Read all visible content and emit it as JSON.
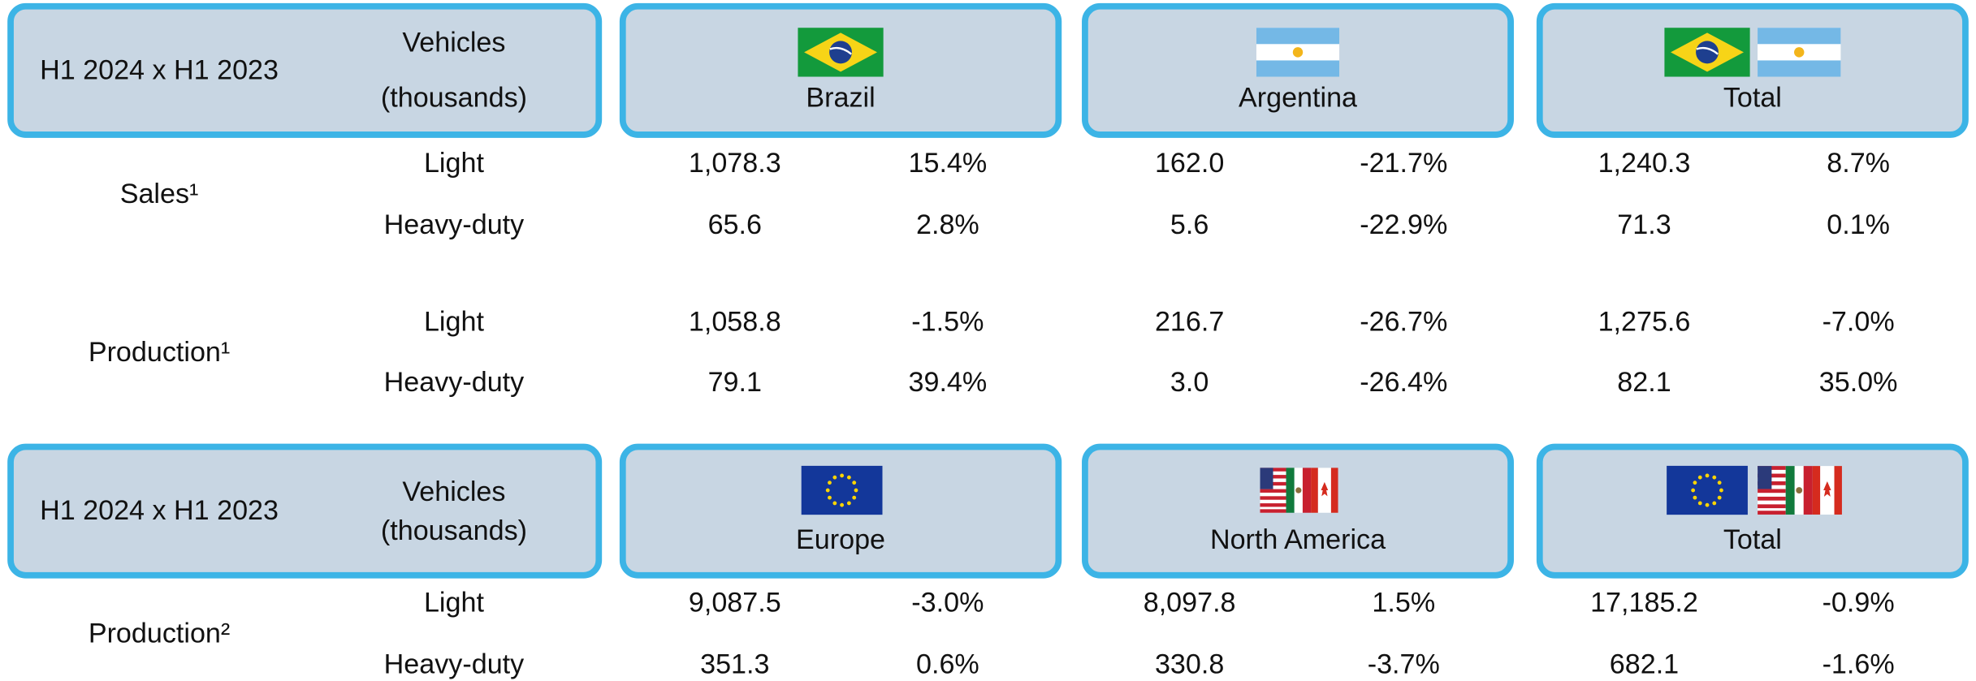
{
  "tables": [
    {
      "header": {
        "period": "H1 2024 x H1 2023",
        "unit": [
          "Vehicles",
          "(thousands)"
        ],
        "regions": [
          "Brazil",
          "Argentina",
          "Total"
        ]
      },
      "groups": [
        {
          "label": "Sales¹",
          "rows": [
            {
              "type": "Light",
              "values": [
                "1,078.3",
                "15.4%",
                "162.0",
                "-21.7%",
                "1,240.3",
                "8.7%"
              ]
            },
            {
              "type": "Heavy-duty",
              "values": [
                "65.6",
                "2.8%",
                "5.6",
                "-22.9%",
                "71.3",
                "0.1%"
              ]
            }
          ]
        },
        {
          "label": "Production¹",
          "rows": [
            {
              "type": "Light",
              "values": [
                "1,058.8",
                "-1.5%",
                "216.7",
                "-26.7%",
                "1,275.6",
                "-7.0%"
              ]
            },
            {
              "type": "Heavy-duty",
              "values": [
                "79.1",
                "39.4%",
                "3.0",
                "-26.4%",
                "82.1",
                "35.0%"
              ]
            }
          ]
        }
      ]
    },
    {
      "header": {
        "period": "H1 2024 x H1 2023",
        "unit": [
          "Vehicles",
          "(thousands)"
        ],
        "regions": [
          "Europe",
          "North America",
          "Total"
        ]
      },
      "groups": [
        {
          "label": "Production²",
          "rows": [
            {
              "type": "Light",
              "values": [
                "9,087.5",
                "-3.0%",
                "8,097.8",
                "1.5%",
                "17,185.2",
                "-0.9%"
              ]
            },
            {
              "type": "Heavy-duty",
              "values": [
                "351.3",
                "0.6%",
                "330.8",
                "-3.7%",
                "682.1",
                "-1.6%"
              ]
            }
          ]
        }
      ]
    }
  ]
}
